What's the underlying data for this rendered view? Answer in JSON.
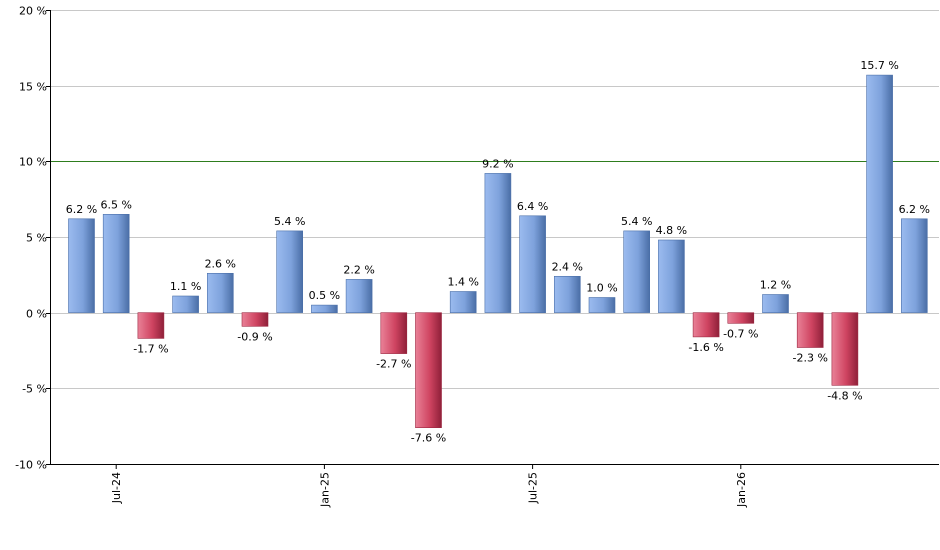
{
  "chart_data": {
    "type": "bar",
    "categories": [
      "2024-06",
      "2024-07",
      "2024-08",
      "2024-09",
      "2024-10",
      "2024-11",
      "2024-12",
      "2025-01",
      "2025-02",
      "2025-03",
      "2025-04",
      "2025-05",
      "2025-06",
      "2025-07",
      "2025-08",
      "2025-09",
      "2025-10",
      "2025-11",
      "2025-12",
      "2026-01",
      "2026-02",
      "2026-03",
      "2026-04",
      "2026-05",
      "2026-06"
    ],
    "values": [
      6.2,
      6.5,
      -1.7,
      1.1,
      2.6,
      -0.9,
      5.4,
      0.5,
      2.2,
      -2.7,
      -7.6,
      1.4,
      9.2,
      6.4,
      2.4,
      1.0,
      5.4,
      4.8,
      -1.6,
      -0.7,
      1.2,
      -2.3,
      -4.8,
      15.7,
      6.2
    ],
    "value_labels": [
      "6.2 %",
      "6.5 %",
      "-1.7 %",
      "1.1 %",
      "2.6 %",
      "-0.9 %",
      "5.4 %",
      "0.5 %",
      "2.2 %",
      "-2.7 %",
      "-7.6 %",
      "1.4 %",
      "9.2 %",
      "6.4 %",
      "2.4 %",
      "1.0 %",
      "5.4 %",
      "4.8 %",
      "-1.6 %",
      "-0.7 %",
      "1.2 %",
      "-2.3 %",
      "-4.8 %",
      "15.7 %",
      "6.2 %"
    ],
    "ylim": [
      -10,
      20
    ],
    "yticks": [
      20,
      15,
      10,
      5,
      0,
      -5,
      -10
    ],
    "ytick_labels": [
      "20 %",
      "15 %",
      "10 %",
      "5 %",
      "0 %",
      "-5 %",
      "-10 %"
    ],
    "xtick_labels": [
      {
        "category": "2024-07",
        "label": "Jul-24"
      },
      {
        "category": "2025-01",
        "label": "Jan-25"
      },
      {
        "category": "2025-07",
        "label": "Jul-25"
      },
      {
        "category": "2026-01",
        "label": "Jan-26"
      }
    ],
    "reference_line": {
      "value": 10,
      "color": "#2e7d1e"
    },
    "grid": true,
    "colors": {
      "positive": "#7fa3dd",
      "positive_dark": "#4a6fa8",
      "negative": "#d24763",
      "negative_dark": "#9c2640",
      "grid": "#c8c8c8",
      "axis": "#000000"
    }
  }
}
